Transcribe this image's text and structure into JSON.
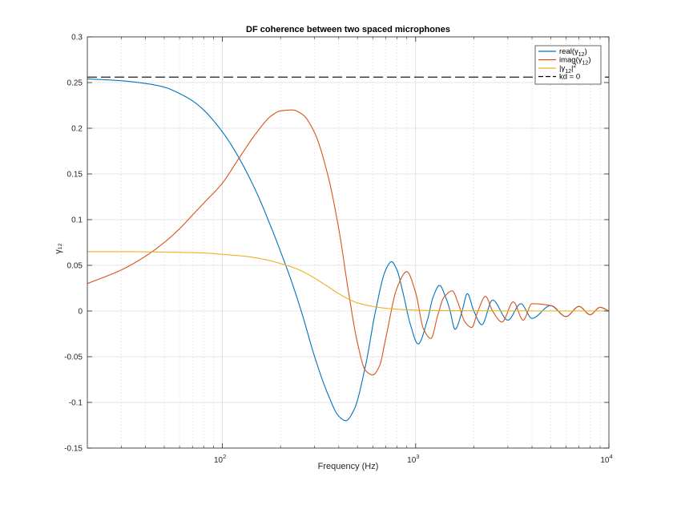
{
  "chart_data": {
    "type": "line",
    "title": "DF coherence between two spaced microphones",
    "xlabel": "Frequency (Hz)",
    "ylabel": "γ₁₂",
    "xscale": "log",
    "xlim": [
      20,
      10000
    ],
    "ylim": [
      -0.15,
      0.3
    ],
    "grid": "on (major solid, minor dotted on x)",
    "legend_position": "top-right",
    "x_ticks": [
      {
        "value": 100,
        "base": "10",
        "exp": "2"
      },
      {
        "value": 1000,
        "base": "10",
        "exp": "3"
      },
      {
        "value": 10000,
        "base": "10",
        "exp": "4"
      }
    ],
    "y_ticks": [
      {
        "value": -0.15,
        "label": "-0.15"
      },
      {
        "value": -0.1,
        "label": "-0.1"
      },
      {
        "value": -0.05,
        "label": "-0.05"
      },
      {
        "value": 0,
        "label": "0"
      },
      {
        "value": 0.05,
        "label": "0.05"
      },
      {
        "value": 0.1,
        "label": "0.1"
      },
      {
        "value": 0.15,
        "label": "0.15"
      },
      {
        "value": 0.2,
        "label": "0.2"
      },
      {
        "value": 0.25,
        "label": "0.25"
      },
      {
        "value": 0.3,
        "label": "0.3"
      }
    ],
    "series": [
      {
        "name": "real(γ12)",
        "legend": {
          "pre": "real(",
          "sym": "γ",
          "sub": "12",
          "post": ")",
          "sup": ""
        },
        "color": "#0072BD",
        "dash": "",
        "x": [
          20,
          25,
          30,
          40,
          50,
          60,
          70,
          80,
          100,
          120,
          150,
          180,
          200,
          230,
          260,
          300,
          350,
          400,
          435,
          480,
          550,
          620,
          700,
          750,
          800,
          860,
          940,
          1030,
          1150,
          1230,
          1330,
          1430,
          1500,
          1600,
          1740,
          1850,
          2000,
          2200,
          2500,
          3000,
          3500,
          4000,
          5000,
          6000,
          7000,
          8000,
          9000,
          10000
        ],
        "y": [
          0.254,
          0.253,
          0.252,
          0.249,
          0.245,
          0.238,
          0.23,
          0.22,
          0.196,
          0.17,
          0.13,
          0.09,
          0.065,
          0.03,
          -0.005,
          -0.05,
          -0.09,
          -0.115,
          -0.12,
          -0.108,
          -0.06,
          0.0,
          0.045,
          0.054,
          0.045,
          0.02,
          -0.015,
          -0.036,
          -0.01,
          0.015,
          0.028,
          0.015,
          0.002,
          -0.02,
          0.0,
          0.019,
          0.0,
          -0.015,
          0.012,
          -0.01,
          0.008,
          -0.008,
          0.006,
          -0.006,
          0.005,
          -0.004,
          0.004,
          0.0
        ]
      },
      {
        "name": "imag(γ12)",
        "legend": {
          "pre": "imag(",
          "sym": "γ",
          "sub": "12",
          "post": ")",
          "sup": ""
        },
        "color": "#D95319",
        "dash": "",
        "x": [
          20,
          30,
          40,
          50,
          60,
          70,
          80,
          100,
          120,
          150,
          180,
          200,
          230,
          260,
          300,
          350,
          400,
          450,
          500,
          550,
          600,
          650,
          700,
          800,
          900,
          1000,
          1100,
          1200,
          1300,
          1400,
          1550,
          1650,
          1800,
          1950,
          2100,
          2300,
          2500,
          2800,
          3200,
          3600,
          4000,
          5000,
          6000,
          7000,
          8000,
          9000,
          10000
        ],
        "y": [
          0.03,
          0.045,
          0.06,
          0.075,
          0.09,
          0.105,
          0.118,
          0.14,
          0.165,
          0.195,
          0.214,
          0.219,
          0.22,
          0.215,
          0.195,
          0.15,
          0.09,
          0.02,
          -0.035,
          -0.065,
          -0.07,
          -0.06,
          -0.03,
          0.025,
          0.043,
          0.02,
          -0.02,
          -0.03,
          -0.005,
          0.015,
          0.022,
          0.01,
          -0.012,
          -0.018,
          0.0,
          0.016,
          0.0,
          -0.012,
          0.01,
          -0.01,
          0.008,
          0.006,
          -0.006,
          0.005,
          -0.004,
          0.004,
          0.0
        ]
      },
      {
        "name": "|γ12|²",
        "legend": {
          "pre": "|",
          "sym": "γ",
          "sub": "12",
          "post": "|",
          "sup": "2"
        },
        "color": "#EDB120",
        "dash": "",
        "x": [
          20,
          30,
          50,
          80,
          100,
          130,
          160,
          200,
          250,
          300,
          350,
          400,
          450,
          500,
          600,
          700,
          800,
          1000,
          1200,
          2000,
          5000,
          10000
        ],
        "y": [
          0.065,
          0.065,
          0.0645,
          0.0635,
          0.062,
          0.06,
          0.057,
          0.052,
          0.045,
          0.036,
          0.027,
          0.019,
          0.013,
          0.009,
          0.005,
          0.003,
          0.002,
          0.001,
          0.0006,
          0.0003,
          0.0001,
          0.0001
        ]
      },
      {
        "name": "kd = 0",
        "legend": {
          "pre": "kd = 0",
          "sym": "",
          "sub": "",
          "post": "",
          "sup": ""
        },
        "color": "#000000",
        "dash": "12 5",
        "x": [
          20,
          10000
        ],
        "y": [
          0.256,
          0.256
        ]
      }
    ]
  }
}
